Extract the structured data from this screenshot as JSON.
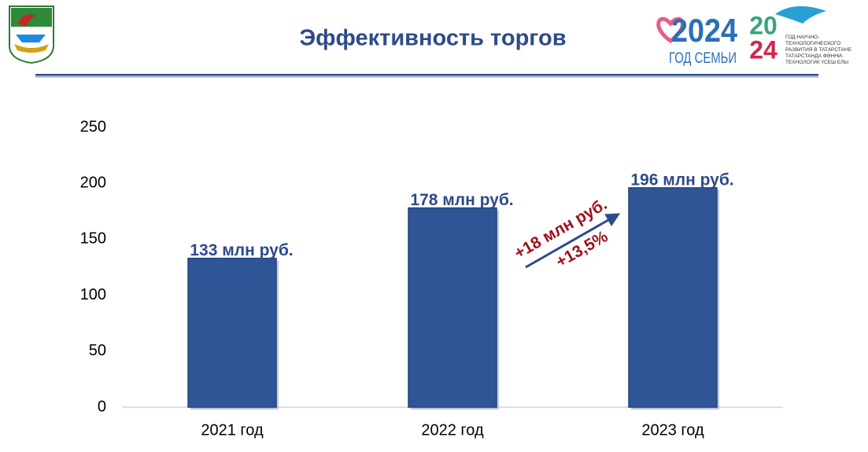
{
  "chart_data": {
    "type": "bar",
    "title": "Эффективность торгов",
    "categories": [
      "2021 год",
      "2022 год",
      "2023 год"
    ],
    "values": [
      133,
      178,
      196
    ],
    "value_labels": [
      "133 млн руб.",
      "178 млн руб.",
      "196 млн руб."
    ],
    "color": "#2f5597",
    "ylim": [
      0,
      250
    ],
    "yticks": [
      0,
      50,
      100,
      150,
      200,
      250
    ],
    "grid": false,
    "annotations": [
      "+18 млн руб.",
      "+13,5%"
    ]
  },
  "logos": {
    "year": "2024",
    "family": "ГОД СЕМЬИ",
    "science_year_top": "20",
    "science_year_bottom": "24",
    "science_ru": "ГОД НАУЧНО-ТЕХНОЛОГИЧЕСКОГО РАЗВИТИЯ В ТАТАРСТАНЕ",
    "science_tt": "ТАТАРСТАНДА ФӘННИ-ТЕХНОЛОГИК ҮСЕШ ЕЛЫ"
  }
}
